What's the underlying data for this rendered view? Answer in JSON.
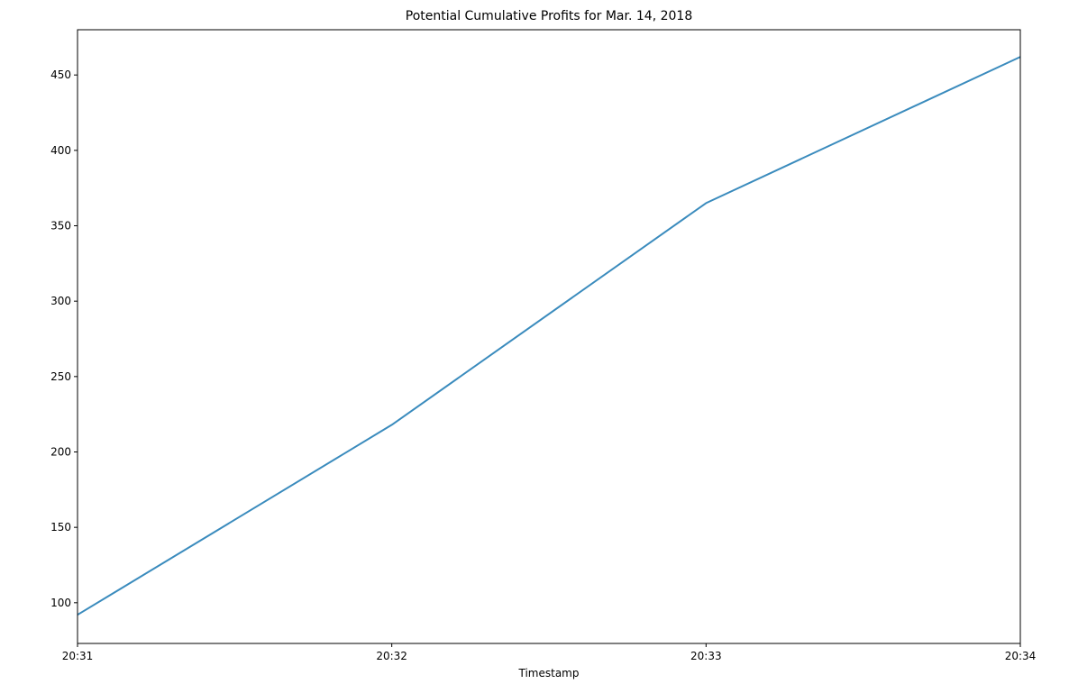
{
  "chart_data": {
    "type": "line",
    "title": "Potential Cumulative Profits for Mar. 14, 2018",
    "xlabel": "Timestamp",
    "ylabel": "",
    "x": [
      "20:31",
      "20:32",
      "20:33",
      "20:34"
    ],
    "xticks": [
      "20:31",
      "20:32",
      "20:33",
      "20:34"
    ],
    "yticks": [
      100,
      150,
      200,
      250,
      300,
      350,
      400,
      450
    ],
    "ylim": [
      73,
      480
    ],
    "grid": false,
    "series": [
      {
        "values": [
          92,
          218,
          365,
          462
        ],
        "color": "#3a8bbd"
      }
    ]
  }
}
